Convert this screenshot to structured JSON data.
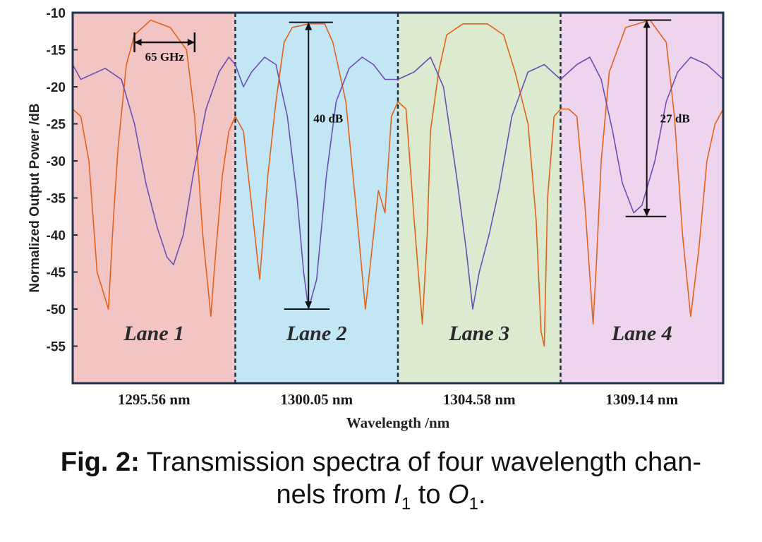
{
  "chart_data": {
    "type": "line",
    "ylabel": "Normalized Output Power /dB",
    "xlabel": "Wavelength /nm",
    "ylim": [
      -60,
      -10
    ],
    "yticks": [
      -10,
      -15,
      -20,
      -25,
      -30,
      -35,
      -40,
      -45,
      -50,
      -55
    ],
    "xlim": [
      0,
      4
    ],
    "colors": {
      "frame": "#1d2f4a",
      "through": "#e2621b",
      "drop": "#6a4fb5"
    },
    "lanes": [
      {
        "label": "Lane 1",
        "center": "1295.56 nm",
        "color": "#f2c4c4"
      },
      {
        "label": "Lane 2",
        "center": "1300.05 nm",
        "color": "#c3e6f5"
      },
      {
        "label": "Lane 3",
        "center": "1304.58 nm",
        "color": "#dcebcf"
      },
      {
        "label": "Lane 4",
        "center": "1309.14 nm",
        "color": "#eed4ec"
      }
    ],
    "series": [
      {
        "name": "orange",
        "x": [
          0,
          0.05,
          0.1,
          0.15,
          0.22,
          0.25,
          0.28,
          0.33,
          0.38,
          0.48,
          0.6,
          0.7,
          0.75,
          0.8,
          0.85,
          0.87,
          0.92,
          0.96,
          1.0,
          1.05,
          1.1,
          1.15,
          1.2,
          1.25,
          1.3,
          1.35,
          1.45,
          1.55,
          1.6,
          1.68,
          1.75,
          1.8,
          1.85,
          1.88,
          1.92,
          1.96,
          2.0,
          2.05,
          2.1,
          2.15,
          2.18,
          2.2,
          2.25,
          2.3,
          2.4,
          2.55,
          2.65,
          2.72,
          2.8,
          2.85,
          2.88,
          2.9,
          2.92,
          2.96,
          3.0,
          3.05,
          3.1,
          3.15,
          3.2,
          3.22,
          3.25,
          3.3,
          3.4,
          3.55,
          3.65,
          3.7,
          3.75,
          3.8,
          3.85,
          3.9,
          3.95,
          4.0
        ],
        "values": [
          -23,
          -24,
          -30,
          -45,
          -50,
          -38,
          -28,
          -17,
          -13,
          -11,
          -12,
          -15,
          -24,
          -40,
          -51,
          -45,
          -32,
          -26,
          -24,
          -26,
          -36,
          -46,
          -32,
          -22,
          -14,
          -12,
          -11.5,
          -11.5,
          -14,
          -22,
          -38,
          -50,
          -40,
          -34,
          -37,
          -24,
          -22,
          -23,
          -38,
          -52,
          -40,
          -26,
          -18,
          -13,
          -11.5,
          -11.5,
          -13,
          -18,
          -25,
          -38,
          -53,
          -55,
          -35,
          -24,
          -23,
          -23,
          -24,
          -36,
          -52,
          -44,
          -30,
          -18,
          -12,
          -11,
          -14,
          -24,
          -40,
          -51,
          -42,
          -30,
          -25,
          -23
        ]
      },
      {
        "name": "purple",
        "x": [
          0,
          0.05,
          0.1,
          0.2,
          0.3,
          0.38,
          0.45,
          0.52,
          0.58,
          0.62,
          0.68,
          0.74,
          0.82,
          0.9,
          0.96,
          1.0,
          1.05,
          1.1,
          1.18,
          1.25,
          1.32,
          1.38,
          1.42,
          1.45,
          1.5,
          1.56,
          1.62,
          1.7,
          1.78,
          1.85,
          1.92,
          2.0,
          2.1,
          2.2,
          2.28,
          2.36,
          2.42,
          2.46,
          2.5,
          2.56,
          2.62,
          2.7,
          2.8,
          2.9,
          3.0,
          3.1,
          3.18,
          3.25,
          3.32,
          3.38,
          3.45,
          3.5,
          3.58,
          3.65,
          3.72,
          3.8,
          3.9,
          4.0
        ],
        "values": [
          -17,
          -19,
          -18.5,
          -17.5,
          -19,
          -25,
          -33,
          -39,
          -43,
          -44,
          -40,
          -32,
          -23,
          -18,
          -16,
          -17,
          -20,
          -18,
          -16,
          -17,
          -24,
          -35,
          -45,
          -50,
          -46,
          -32,
          -22,
          -17.5,
          -16,
          -17,
          -19,
          -19,
          -18,
          -16,
          -20,
          -32,
          -42,
          -50,
          -45,
          -40,
          -34,
          -24,
          -18,
          -17,
          -19,
          -17,
          -16,
          -19,
          -26,
          -33,
          -37,
          -36,
          -30,
          -22,
          -18,
          -16,
          -17,
          -19
        ]
      }
    ],
    "annotations": {
      "bandwidth": "65 GHz",
      "extinction": "40 dB",
      "isolation": "27 dB"
    }
  },
  "caption": {
    "prefix": "Fig. 2:",
    "text_1": " Transmission spectra of four wavelength chan-",
    "text_2": "nels from ",
    "var_1": "I",
    "sub_1": "1",
    "text_3": " to ",
    "var_2": "O",
    "sub_2": "1",
    "text_4": "."
  }
}
